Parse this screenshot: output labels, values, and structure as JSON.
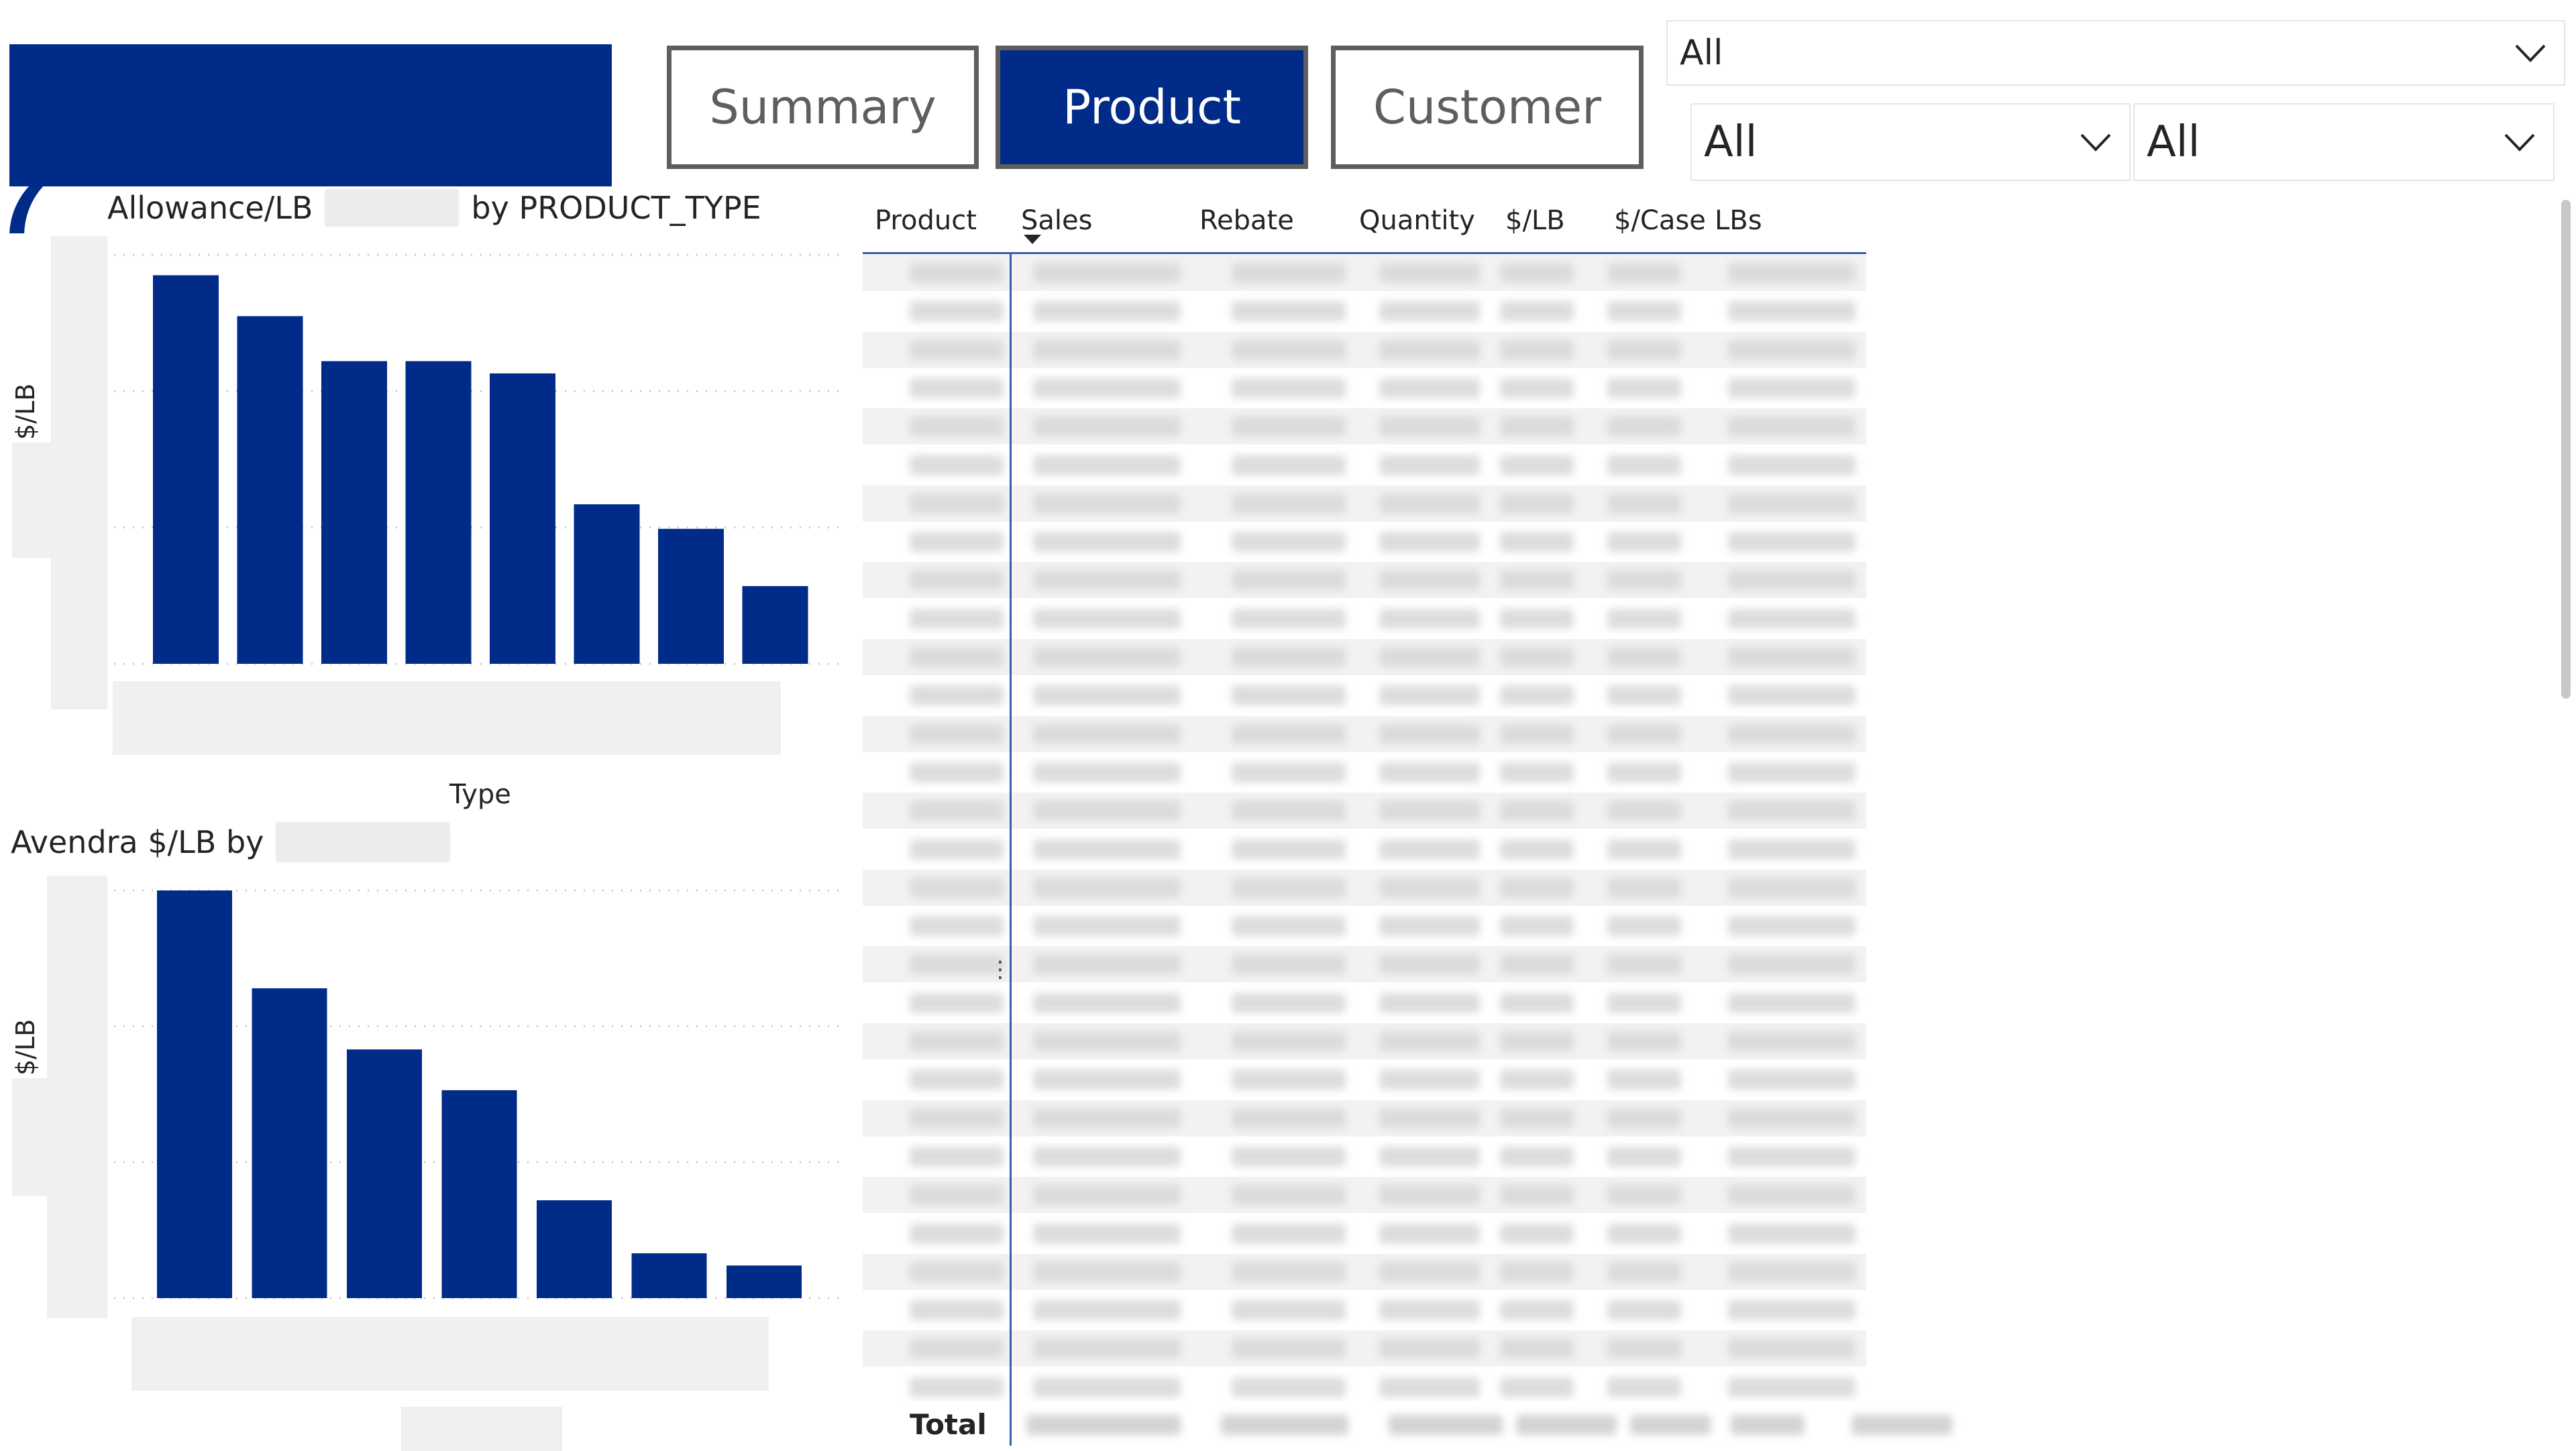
{
  "nav": {
    "summary_label": "Summary",
    "product_label": "Product",
    "customer_label": "Customer",
    "active": "Product"
  },
  "slicers": [
    {
      "value": "All"
    },
    {
      "value": "All"
    },
    {
      "value": "All"
    }
  ],
  "colors": {
    "brand": "#002b88",
    "bar": "#002b88",
    "table_accent": "#3b5bb0"
  },
  "chart1": {
    "title_prefix": "Allowance/LB",
    "title_suffix": "by PRODUCT_TYPE",
    "ylabel": "$/LB",
    "xlabel": "Type"
  },
  "chart2": {
    "title_prefix": "Avendra $/LB by",
    "ylabel": "$/LB"
  },
  "chart_data": [
    {
      "type": "bar",
      "title": "Allowance/LB by PRODUCT_TYPE",
      "xlabel": "Type",
      "ylabel": "$/LB",
      "values": [
        0.95,
        0.85,
        0.74,
        0.74,
        0.71,
        0.39,
        0.33,
        0.19
      ],
      "ylim": [
        0,
        1.0
      ],
      "grid": true
    },
    {
      "type": "bar",
      "title": "Avendra $/LB by",
      "ylabel": "$/LB",
      "values": [
        1.0,
        0.76,
        0.61,
        0.51,
        0.24,
        0.11,
        0.08
      ],
      "ylim": [
        0,
        1.0
      ],
      "grid": true
    }
  ],
  "table": {
    "columns": [
      "Product",
      "Sales",
      "Rebate",
      "Quantity",
      "$/LB",
      "$/Case",
      "LBs"
    ],
    "sorted_by": "Sales",
    "total_label": "Total",
    "row_count": 31
  }
}
